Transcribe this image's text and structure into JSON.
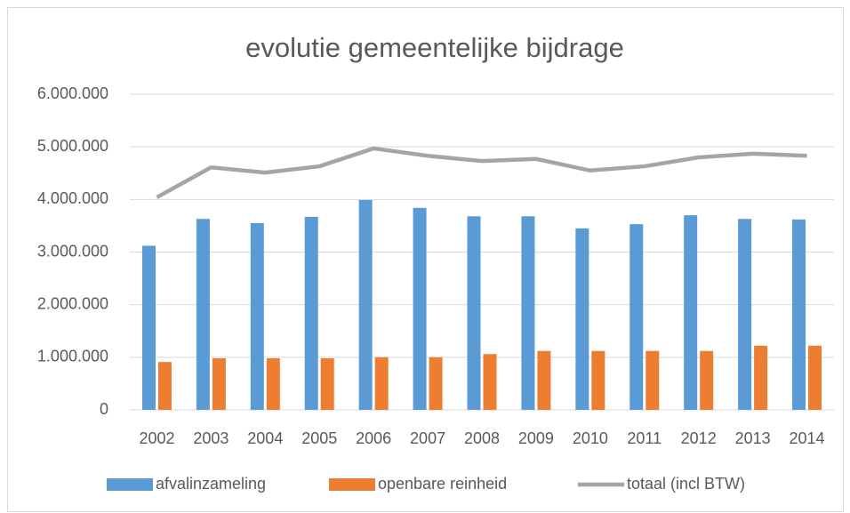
{
  "chart_data": {
    "type": "bar",
    "title": "evolutie gemeentelijke bijdrage",
    "categories": [
      "2002",
      "2003",
      "2004",
      "2005",
      "2006",
      "2007",
      "2008",
      "2009",
      "2010",
      "2011",
      "2012",
      "2013",
      "2014"
    ],
    "series": [
      {
        "name": "afvalinzameling",
        "color": "#5b9bd5",
        "values": [
          3120000,
          3630000,
          3550000,
          3670000,
          3990000,
          3840000,
          3680000,
          3680000,
          3450000,
          3530000,
          3700000,
          3630000,
          3620000
        ]
      },
      {
        "name": "openbare reinheid",
        "color": "#ed7d31",
        "values": [
          910000,
          980000,
          980000,
          980000,
          1000000,
          1000000,
          1060000,
          1120000,
          1120000,
          1120000,
          1120000,
          1220000,
          1220000
        ]
      },
      {
        "name": "totaal (incl BTW)",
        "color": "#a5a5a5",
        "type": "line",
        "values": [
          4040000,
          4610000,
          4510000,
          4630000,
          4970000,
          4830000,
          4730000,
          4770000,
          4550000,
          4630000,
          4800000,
          4870000,
          4830000
        ]
      }
    ],
    "ylim": [
      0,
      6000000
    ],
    "yticks": [
      0,
      {
        "value": 1000000,
        "label": "1.000.000"
      },
      {
        "value": 2000000,
        "label": "2.000.000"
      },
      {
        "value": 3000000,
        "label": "3.000.000"
      },
      {
        "value": 4000000,
        "label": "4.000.000"
      },
      {
        "value": 5000000,
        "label": "5.000.000"
      },
      {
        "value": 6000000,
        "label": "6.000.000"
      }
    ],
    "grid": true,
    "legend": "bottom"
  }
}
